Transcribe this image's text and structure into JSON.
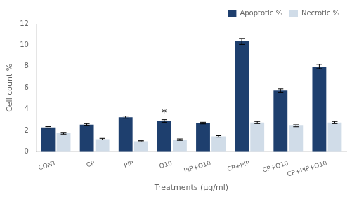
{
  "chart_data": {
    "type": "bar",
    "categories": [
      "CONT",
      "CP",
      "PIP",
      "Q10",
      "PIP+Q10",
      "CP+PIP",
      "CP+Q10",
      "CP+PIP+Q10"
    ],
    "series": [
      {
        "name": "Apoptotic %",
        "color": "#1e3f6e",
        "values": [
          2.3,
          2.55,
          3.25,
          2.9,
          2.7,
          10.35,
          5.75,
          8.0
        ],
        "errors": [
          0.07,
          0.1,
          0.1,
          0.12,
          0.08,
          0.28,
          0.15,
          0.2
        ]
      },
      {
        "name": "Necrotic %",
        "color": "#d0dce8",
        "values": [
          1.75,
          1.2,
          1.0,
          1.15,
          1.45,
          2.75,
          2.45,
          2.75
        ],
        "errors": [
          0.08,
          0.07,
          0.05,
          0.07,
          0.07,
          0.1,
          0.09,
          0.1
        ]
      }
    ],
    "xlabel": "Treatments (μg/ml)",
    "ylabel": "Cell count %",
    "ylim": [
      0,
      12
    ],
    "yticks": [
      0,
      2,
      4,
      6,
      8,
      10,
      12
    ],
    "grid": false,
    "legend": "upper right",
    "annotations": [
      {
        "text": "*",
        "category": "Q10",
        "series": "Apoptotic %"
      }
    ]
  }
}
